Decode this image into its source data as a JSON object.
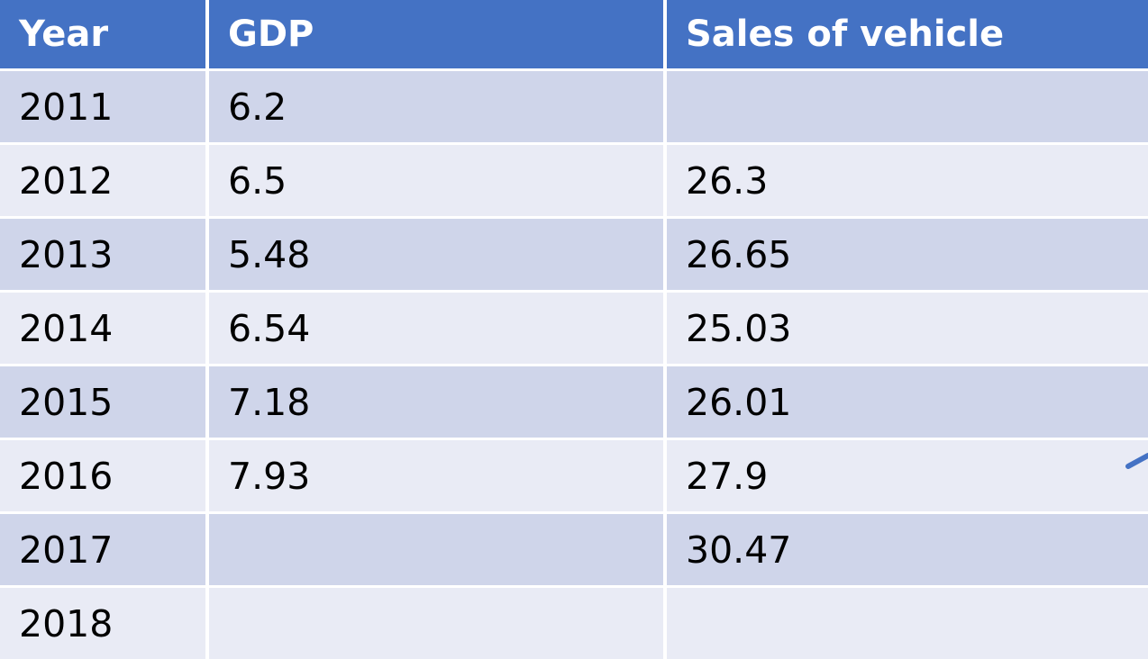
{
  "table": {
    "headers": [
      "Year",
      "GDP",
      "Sales of vehicle"
    ],
    "rows": [
      {
        "year": "2011",
        "gdp": "6.2",
        "sales": ""
      },
      {
        "year": "2012",
        "gdp": "6.5",
        "sales": "26.3"
      },
      {
        "year": "2013",
        "gdp": "5.48",
        "sales": "26.65"
      },
      {
        "year": "2014",
        "gdp": "6.54",
        "sales": "25.03"
      },
      {
        "year": "2015",
        "gdp": "7.18",
        "sales": "26.01"
      },
      {
        "year": "2016",
        "gdp": "7.93",
        "sales": "27.9"
      },
      {
        "year": "2017",
        "gdp": "",
        "sales": "30.47"
      },
      {
        "year": "2018",
        "gdp": "",
        "sales": ""
      }
    ]
  },
  "colors": {
    "header_bg": "#4472c4",
    "header_text": "#ffffff",
    "row_band_dark": "#cfd5ea",
    "row_band_light": "#e9ebf5",
    "accent_shape": "#4472c4"
  },
  "icons": {
    "edge_shape": "arrow-line-icon"
  }
}
